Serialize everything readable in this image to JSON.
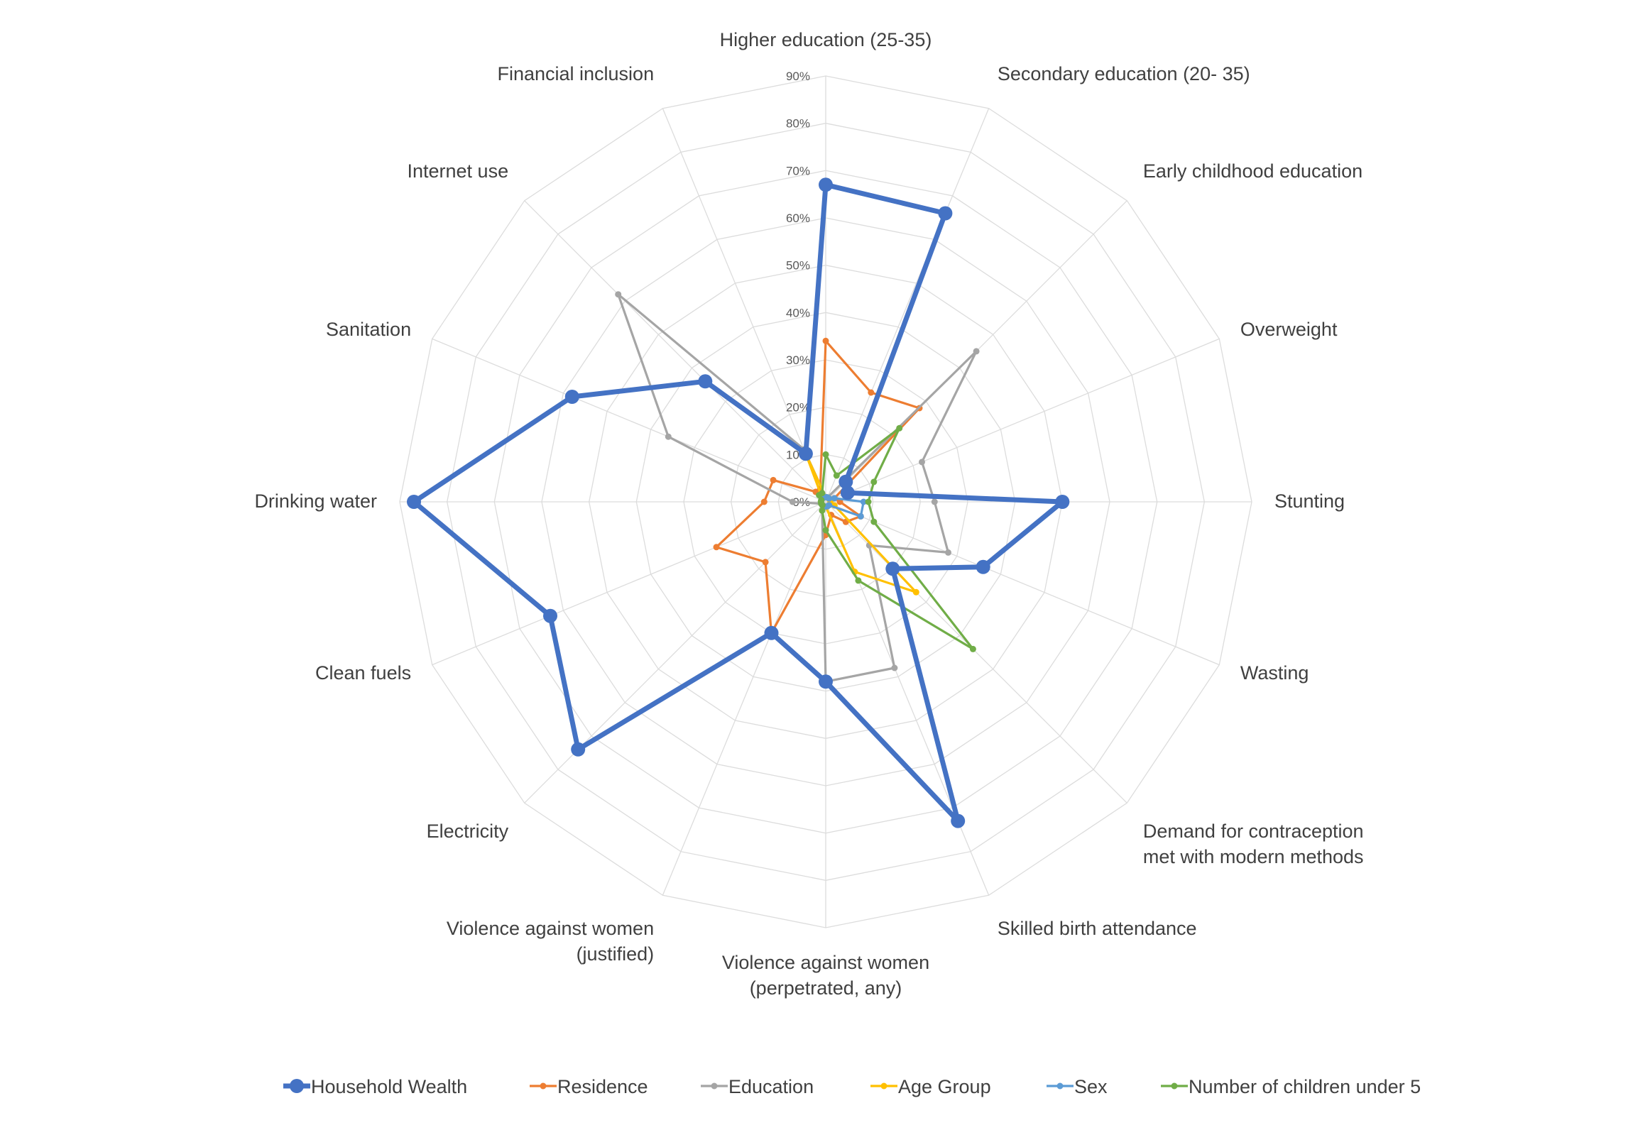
{
  "chart_data": {
    "type": "radar",
    "title": "",
    "axes": [
      {
        "label": [
          "Higher education (25-35)"
        ]
      },
      {
        "label": [
          "Secondary education (20- 35)"
        ]
      },
      {
        "label": [
          "Early childhood education"
        ]
      },
      {
        "label": [
          "Overweight"
        ]
      },
      {
        "label": [
          "Stunting"
        ]
      },
      {
        "label": [
          "Wasting"
        ]
      },
      {
        "label": [
          "Demand for contraception",
          "met with modern methods"
        ]
      },
      {
        "label": [
          "Skilled birth attendance"
        ]
      },
      {
        "label": [
          "Violence against women",
          "(perpetrated, any)"
        ]
      },
      {
        "label": [
          "Violence against women",
          "(justified)"
        ]
      },
      {
        "label": [
          "Electricity"
        ]
      },
      {
        "label": [
          "Clean fuels"
        ]
      },
      {
        "label": [
          "Drinking water"
        ]
      },
      {
        "label": [
          "Sanitation"
        ]
      },
      {
        "label": [
          "Internet use"
        ]
      },
      {
        "label": [
          "Financial inclusion"
        ]
      }
    ],
    "ticks": [
      "0%",
      "10%",
      "20%",
      "30%",
      "40%",
      "50%",
      "60%",
      "70%",
      "80%",
      "90%"
    ],
    "rmax": 90,
    "grid": true,
    "legend_position": "bottom",
    "series": [
      {
        "name": "Household Wealth",
        "color": "#4472C4",
        "values": [
          67,
          66,
          6,
          5,
          50,
          36,
          20,
          73,
          38,
          30,
          74,
          63,
          87,
          58,
          36,
          11
        ]
      },
      {
        "name": "Residence",
        "color": "#ED7D31",
        "values": [
          34,
          25,
          28,
          2,
          3,
          8,
          6,
          3,
          7,
          30,
          18,
          25,
          13,
          12,
          3,
          3
        ]
      },
      {
        "name": "Education",
        "color": "#A5A5A5",
        "values": [
          1,
          1,
          45,
          22,
          23,
          28,
          13,
          38,
          38,
          2,
          1,
          1,
          7,
          36,
          62,
          12
        ]
      },
      {
        "name": "Age Group",
        "color": "#FFC000",
        "values": [
          1,
          1,
          1,
          1,
          1,
          2,
          27,
          16,
          1,
          1,
          1,
          1,
          1,
          1,
          1,
          11
        ]
      },
      {
        "name": "Sex",
        "color": "#5B9BD5",
        "values": [
          1,
          1,
          1,
          2,
          8,
          8,
          1,
          1,
          1,
          1,
          1,
          1,
          1,
          1,
          1,
          1
        ]
      },
      {
        "name": "Number of children under 5",
        "color": "#70AD47",
        "values": [
          10,
          6,
          22,
          11,
          9,
          11,
          44,
          18,
          6,
          2,
          1,
          1,
          1,
          1,
          2,
          2
        ]
      }
    ]
  }
}
